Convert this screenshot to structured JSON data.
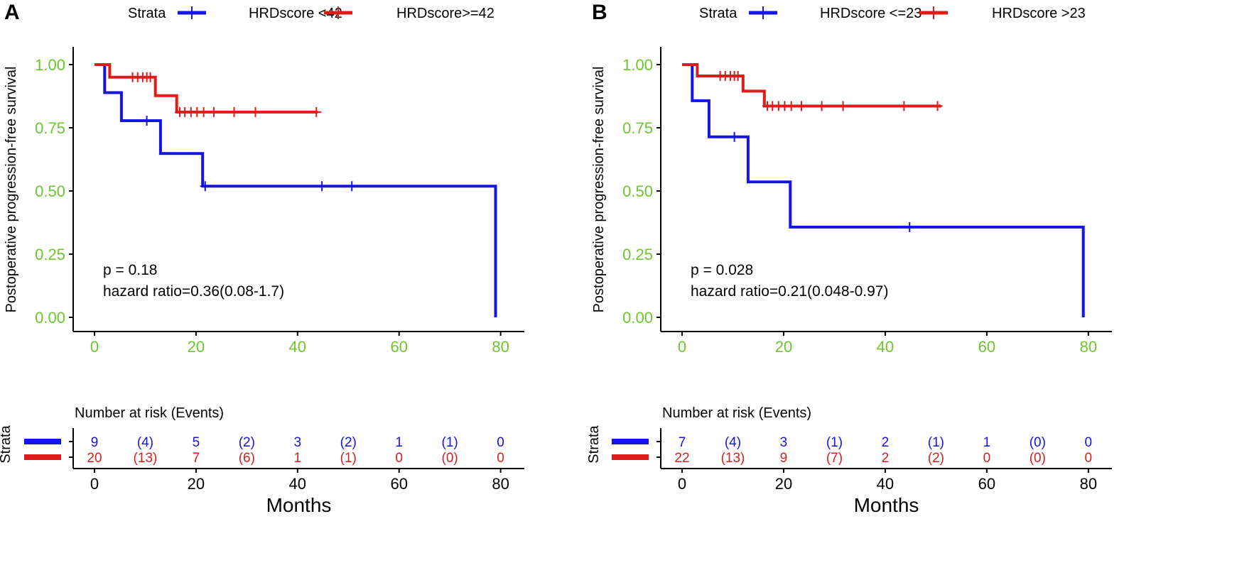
{
  "colors": {
    "blue": "#1414e6",
    "red": "#dd1c1c",
    "tick_green": "#6dc72b",
    "black": "#000000"
  },
  "chart_data": [
    {
      "type": "kaplan-meier",
      "panel_label": "A",
      "legend_title": "Strata",
      "legend": [
        "HRDscore <42",
        "HRDscore>=42"
      ],
      "ylabel": "Postoperative progression-free survival",
      "xlabel": "Months",
      "xlim": [
        -3,
        83
      ],
      "ylim": [
        0,
        1.05
      ],
      "x_ticks": [
        "0",
        "20",
        "40",
        "60",
        "80"
      ],
      "y_ticks": [
        "0.00",
        "0.25",
        "0.50",
        "0.75",
        "1.00"
      ],
      "annotation": [
        "p = 0.18",
        "hazard ratio=0.36(0.08-1.7)"
      ],
      "series": [
        {
          "name": "HRDscore <42",
          "color_key": "blue",
          "steps": [
            [
              0,
              1.0
            ],
            [
              2,
              0.889
            ],
            [
              5.3,
              0.778
            ],
            [
              13,
              0.648
            ],
            [
              21.3,
              0.519
            ],
            [
              79,
              0.0
            ]
          ],
          "end": 79,
          "censored": [
            [
              10.3,
              0.778
            ],
            [
              21.8,
              0.519
            ],
            [
              44.8,
              0.519
            ],
            [
              50.7,
              0.519
            ]
          ]
        },
        {
          "name": "HRDscore>=42",
          "color_key": "red",
          "steps": [
            [
              0,
              1.0
            ],
            [
              3,
              0.95
            ],
            [
              12,
              0.877
            ],
            [
              16.2,
              0.812
            ]
          ],
          "end": 44,
          "censored": [
            [
              7.5,
              0.95
            ],
            [
              8.5,
              0.95
            ],
            [
              9.5,
              0.95
            ],
            [
              10.3,
              0.95
            ],
            [
              11,
              0.95
            ],
            [
              16.8,
              0.812
            ],
            [
              17.8,
              0.812
            ],
            [
              19,
              0.812
            ],
            [
              20.2,
              0.812
            ],
            [
              21.5,
              0.812
            ],
            [
              23.5,
              0.812
            ],
            [
              27.5,
              0.812
            ],
            [
              31.7,
              0.812
            ],
            [
              43.7,
              0.812
            ]
          ]
        }
      ],
      "risk_table": {
        "title": "Number at risk (Events)",
        "strata_label": "Strata",
        "xlabel": "Months",
        "x_ticks": [
          "0",
          "20",
          "40",
          "60",
          "80"
        ],
        "rows": [
          {
            "color_key": "blue",
            "cells": [
              "9",
              "(4)",
              "5",
              "(2)",
              "3",
              "(2)",
              "1",
              "(1)",
              "0"
            ]
          },
          {
            "color_key": "red",
            "cells": [
              "20",
              "(13)",
              "7",
              "(6)",
              "1",
              "(1)",
              "0",
              "(0)",
              "0"
            ]
          }
        ]
      }
    },
    {
      "type": "kaplan-meier",
      "panel_label": "B",
      "legend_title": "Strata",
      "legend": [
        "HRDscore <=23",
        "HRDscore >23"
      ],
      "ylabel": "Postoperative progression-free survival",
      "xlabel": "Months",
      "xlim": [
        -3,
        83
      ],
      "ylim": [
        0,
        1.05
      ],
      "x_ticks": [
        "0",
        "20",
        "40",
        "60",
        "80"
      ],
      "y_ticks": [
        "0.00",
        "0.25",
        "0.50",
        "0.75",
        "1.00"
      ],
      "annotation": [
        "p = 0.028",
        "hazard ratio=0.21(0.048-0.97)"
      ],
      "series": [
        {
          "name": "HRDscore <=23",
          "color_key": "blue",
          "steps": [
            [
              0,
              1.0
            ],
            [
              2,
              0.857
            ],
            [
              5.3,
              0.714
            ],
            [
              13,
              0.536
            ],
            [
              21.3,
              0.357
            ],
            [
              79,
              0.0
            ]
          ],
          "end": 79,
          "censored": [
            [
              10.3,
              0.714
            ],
            [
              44.8,
              0.357
            ]
          ]
        },
        {
          "name": "HRDscore >23",
          "color_key": "red",
          "steps": [
            [
              0,
              1.0
            ],
            [
              3,
              0.955
            ],
            [
              12,
              0.895
            ],
            [
              16.2,
              0.836
            ]
          ],
          "end": 51,
          "censored": [
            [
              7.5,
              0.955
            ],
            [
              8.5,
              0.955
            ],
            [
              9.5,
              0.955
            ],
            [
              10.3,
              0.955
            ],
            [
              11,
              0.955
            ],
            [
              16.8,
              0.836
            ],
            [
              17.8,
              0.836
            ],
            [
              19,
              0.836
            ],
            [
              20.2,
              0.836
            ],
            [
              21.5,
              0.836
            ],
            [
              23.5,
              0.836
            ],
            [
              27.5,
              0.836
            ],
            [
              31.7,
              0.836
            ],
            [
              43.7,
              0.836
            ],
            [
              50.3,
              0.836
            ]
          ]
        }
      ],
      "risk_table": {
        "title": "Number at risk (Events)",
        "strata_label": "Strata",
        "xlabel": "Months",
        "x_ticks": [
          "0",
          "20",
          "40",
          "60",
          "80"
        ],
        "rows": [
          {
            "color_key": "blue",
            "cells": [
              "7",
              "(4)",
              "3",
              "(1)",
              "2",
              "(1)",
              "1",
              "(0)",
              "0"
            ]
          },
          {
            "color_key": "red",
            "cells": [
              "22",
              "(13)",
              "9",
              "(7)",
              "2",
              "(2)",
              "0",
              "(0)",
              "0"
            ]
          }
        ]
      }
    }
  ]
}
